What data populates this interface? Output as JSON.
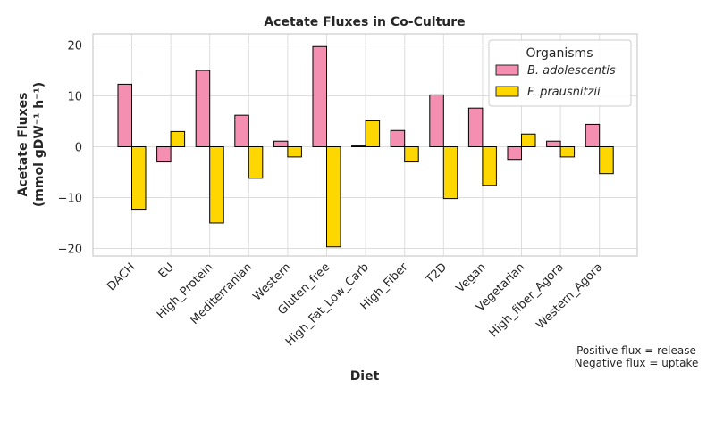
{
  "chart_data": {
    "type": "bar",
    "title": "Acetate Fluxes in Co-Culture",
    "xlabel": "Diet",
    "ylabel_line1": "Acetate Fluxes",
    "ylabel_line2": "(mmol gDW⁻¹ h⁻¹)",
    "categories": [
      "DACH",
      "EU",
      "High_Protein",
      "Mediterranian",
      "Western",
      "Gluten_free",
      "High_Fat_Low_Carb",
      "High_Fiber",
      "T2D",
      "Vegan",
      "Vegetarian",
      "High_fiber_Agora",
      "Western_Agora"
    ],
    "series": [
      {
        "name": "B. adolescentis",
        "color": "#f48fb1",
        "values": [
          12.3,
          -3.0,
          15.0,
          6.2,
          1.1,
          19.7,
          0.2,
          3.2,
          10.2,
          7.6,
          -2.5,
          1.1,
          4.4
        ]
      },
      {
        "name": "F. prausnitzii",
        "color": "#ffd700",
        "values": [
          -12.3,
          3.0,
          -15.0,
          -6.2,
          -2.0,
          -19.7,
          5.1,
          -3.0,
          -10.2,
          -7.6,
          2.5,
          -2.0,
          -5.3
        ]
      }
    ],
    "ylim": [
      -21.5,
      22.2
    ],
    "yticks": [
      -20,
      -10,
      0,
      10,
      20
    ],
    "grid": true,
    "legend": {
      "title": "Organisms",
      "placement": "top-right"
    },
    "annotation": [
      "Positive flux = release",
      "Negative flux = uptake"
    ]
  }
}
